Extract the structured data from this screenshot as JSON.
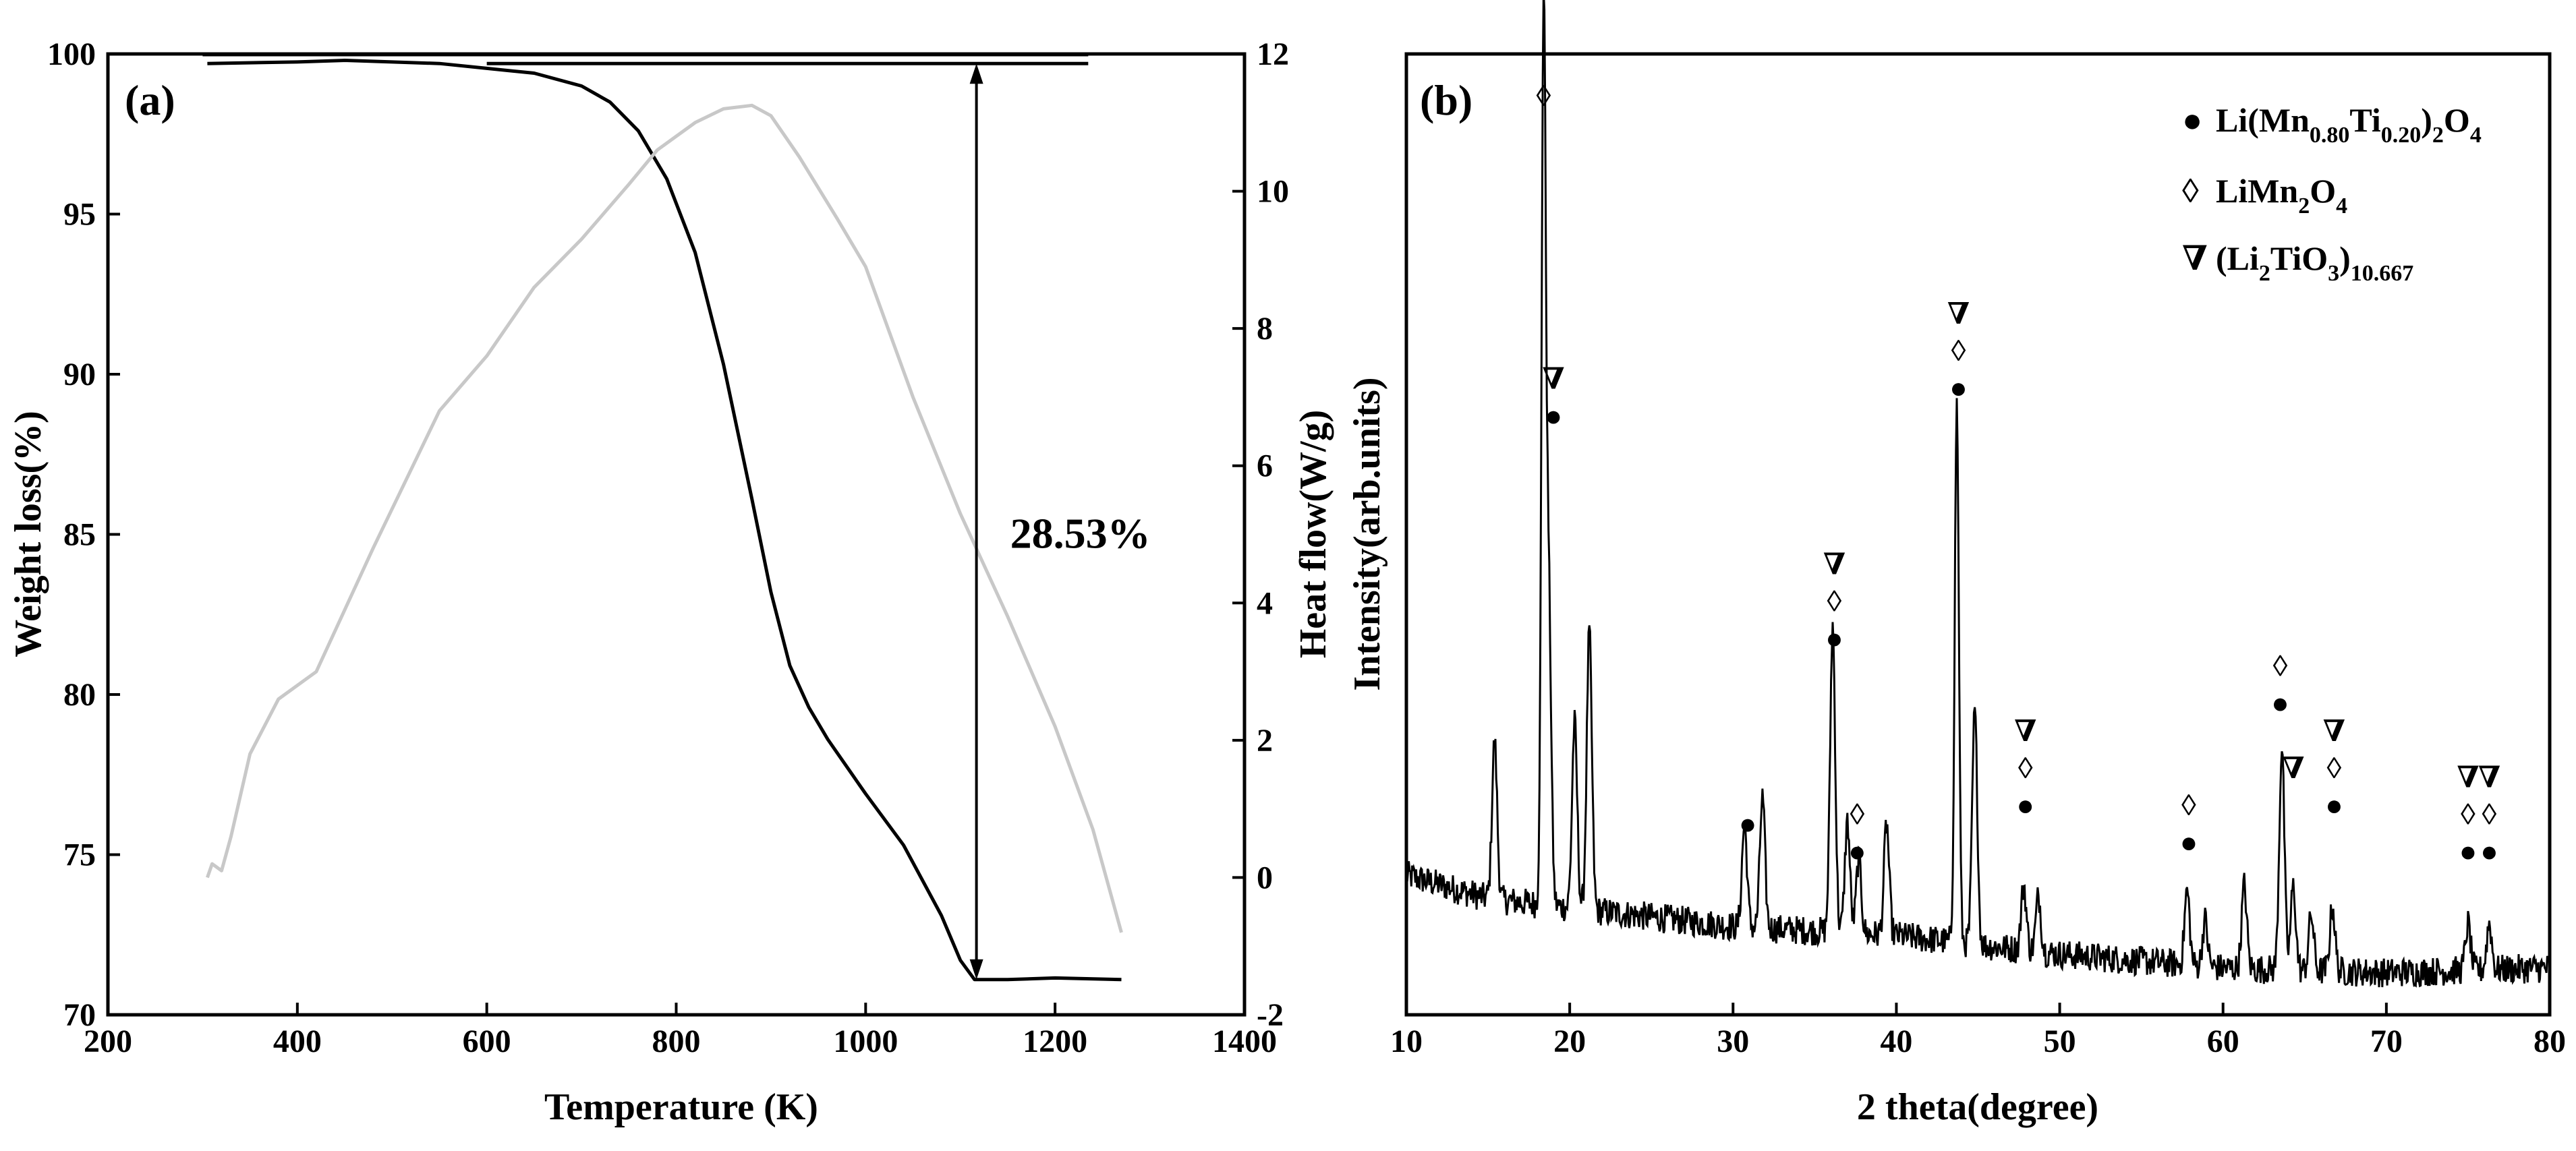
{
  "chart_data": [
    {
      "type": "line",
      "panel_label": "(a)",
      "xlabel": "Temperature (K)",
      "ylabel": "Weight loss(%)",
      "y2label": "Heat flow(W/g)",
      "xlim": [
        200,
        1400
      ],
      "ylim": [
        70,
        100
      ],
      "y2lim": [
        -2,
        12
      ],
      "xticks": [
        "200",
        "400",
        "600",
        "800",
        "1000",
        "1200",
        "1400"
      ],
      "yticks": [
        "70",
        "75",
        "80",
        "85",
        "90",
        "95",
        "100"
      ],
      "y2ticks": [
        "-2",
        "0",
        "2",
        "4",
        "6",
        "8",
        "10",
        "12"
      ],
      "colors": {
        "weight": "#000000",
        "heat": "#c8c8c8"
      },
      "series": [
        {
          "name": "Weight loss",
          "axis": "left",
          "x": [
            305,
            400,
            450,
            500,
            550,
            600,
            650,
            700,
            730,
            760,
            790,
            820,
            850,
            880,
            900,
            920,
            940,
            960,
            1000,
            1040,
            1080,
            1100,
            1115,
            1150,
            1200,
            1270
          ],
          "y": [
            99.7,
            99.75,
            99.8,
            99.75,
            99.7,
            99.55,
            99.4,
            99.0,
            98.5,
            97.6,
            96.1,
            93.8,
            90.3,
            86.1,
            83.2,
            80.9,
            79.6,
            78.6,
            76.9,
            75.3,
            73.1,
            71.7,
            71.1,
            71.1,
            71.15,
            71.1
          ]
        },
        {
          "name": "Heat flow",
          "axis": "right",
          "x": [
            305,
            310,
            320,
            330,
            350,
            380,
            420,
            480,
            550,
            600,
            650,
            700,
            750,
            780,
            820,
            850,
            880,
            900,
            930,
            970,
            1000,
            1050,
            1100,
            1150,
            1200,
            1240,
            1270
          ],
          "y": [
            0.0,
            0.2,
            0.1,
            0.6,
            1.8,
            2.6,
            3.0,
            4.8,
            6.8,
            7.6,
            8.6,
            9.3,
            10.1,
            10.6,
            11.0,
            11.2,
            11.25,
            11.1,
            10.5,
            9.6,
            8.9,
            7.0,
            5.3,
            3.8,
            2.2,
            0.7,
            -0.8
          ]
        }
      ],
      "annotation": {
        "text": "28.53%",
        "from_y": 99.7,
        "to_y": 71.1,
        "at_x": 1117
      }
    },
    {
      "type": "line",
      "panel_label": "(b)",
      "xlabel": "2 theta(degree)",
      "ylabel": "Intensity(arb.units)",
      "xlim": [
        10,
        80
      ],
      "ylim": [
        0,
        100
      ],
      "xticks": [
        "10",
        "20",
        "30",
        "40",
        "50",
        "60",
        "70",
        "80"
      ],
      "colors": {
        "pattern": "#000000"
      },
      "baseline": [
        [
          10,
          12.5
        ],
        [
          15,
          10
        ],
        [
          20,
          9
        ],
        [
          30,
          7
        ],
        [
          40,
          6
        ],
        [
          50,
          4
        ],
        [
          60,
          2.5
        ],
        [
          70,
          2
        ],
        [
          80,
          2.5
        ]
      ],
      "peaks": [
        {
          "x": 15.4,
          "h": 17
        },
        {
          "x": 18.4,
          "h": 94
        },
        {
          "x": 18.7,
          "h": 35
        },
        {
          "x": 20.3,
          "h": 20
        },
        {
          "x": 21.2,
          "h": 30
        },
        {
          "x": 30.7,
          "h": 11
        },
        {
          "x": 31.8,
          "h": 14
        },
        {
          "x": 36.1,
          "h": 33
        },
        {
          "x": 37.0,
          "h": 12
        },
        {
          "x": 37.7,
          "h": 8
        },
        {
          "x": 39.4,
          "h": 12
        },
        {
          "x": 43.7,
          "h": 58
        },
        {
          "x": 44.8,
          "h": 25
        },
        {
          "x": 47.8,
          "h": 7
        },
        {
          "x": 48.7,
          "h": 6
        },
        {
          "x": 57.8,
          "h": 8
        },
        {
          "x": 58.9,
          "h": 5
        },
        {
          "x": 61.3,
          "h": 9
        },
        {
          "x": 63.6,
          "h": 24
        },
        {
          "x": 64.3,
          "h": 9
        },
        {
          "x": 65.4,
          "h": 6
        },
        {
          "x": 66.7,
          "h": 7
        },
        {
          "x": 75.0,
          "h": 5
        },
        {
          "x": 76.3,
          "h": 5
        }
      ],
      "legend": [
        {
          "symbol": "●",
          "prefix": "Li(Mn",
          "sub1": "0.80",
          "mid": "Ti",
          "sub2": "0.20",
          "mid2": ")",
          "sub3": "2",
          "suffix": "O",
          "sub4": "4"
        },
        {
          "symbol": "◊",
          "prefix": "LiMn",
          "sub1": "2",
          "mid": "O",
          "sub2": "4"
        },
        {
          "symbol": "∇",
          "prefix": "(Li",
          "sub1": "2",
          "mid": "TiO",
          "sub2": "3",
          "mid2": ")",
          "sub3": "10.667"
        }
      ],
      "markers": [
        {
          "x": 18.4,
          "y": 95.5,
          "symbols": [
            "◊"
          ]
        },
        {
          "x": 19.0,
          "y": 61,
          "symbols": [
            "∇",
            "●"
          ]
        },
        {
          "x": 36.2,
          "y": 37,
          "symbols": [
            "∇",
            "◊",
            "●"
          ]
        },
        {
          "x": 43.8,
          "y": 64,
          "symbols": [
            "∇",
            "◊",
            "●"
          ]
        },
        {
          "x": 30.9,
          "y": 17,
          "symbols": [
            "●"
          ]
        },
        {
          "x": 37.6,
          "y": 14,
          "symbols": [
            "◊",
            "●"
          ]
        },
        {
          "x": 47.9,
          "y": 19,
          "symbols": [
            "∇",
            "◊",
            "●"
          ]
        },
        {
          "x": 57.9,
          "y": 15,
          "symbols": [
            "◊",
            "●"
          ]
        },
        {
          "x": 63.5,
          "y": 30,
          "symbols": [
            "◊",
            "●"
          ]
        },
        {
          "x": 64.3,
          "y": 23,
          "symbols": [
            "∇"
          ]
        },
        {
          "x": 66.8,
          "y": 19,
          "symbols": [
            "∇",
            "◊",
            "●"
          ]
        },
        {
          "x": 75.0,
          "y": 14,
          "symbols": [
            "∇",
            "◊",
            "●"
          ]
        },
        {
          "x": 76.3,
          "y": 14,
          "symbols": [
            "∇",
            "◊",
            "●"
          ]
        }
      ]
    }
  ]
}
